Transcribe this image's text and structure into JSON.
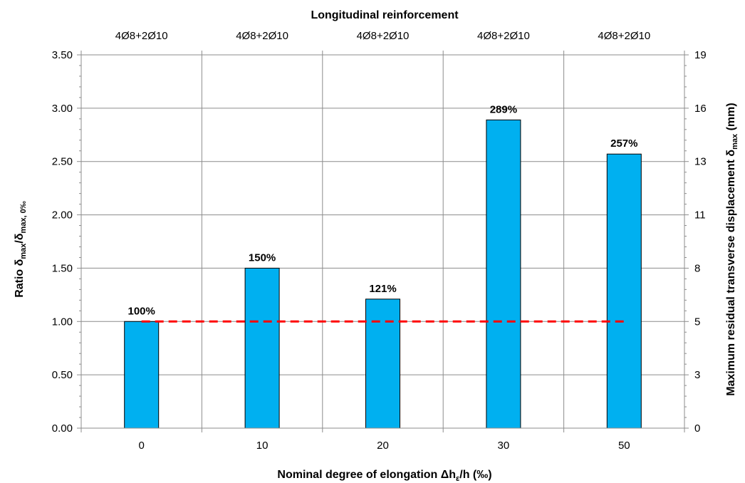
{
  "chart_data": {
    "type": "bar",
    "title": "",
    "top_axis": {
      "title": "Longitudinal reinforcement",
      "labels": [
        "4Ø8+2Ø10",
        "4Ø8+2Ø10",
        "4Ø8+2Ø10",
        "4Ø8+2Ø10",
        "4Ø8+2Ø10"
      ]
    },
    "xlabel": {
      "prefix": "Nominal degree of elongation Δh",
      "subscript": "ε",
      "suffix": "/h (‰)"
    },
    "ylabel": {
      "prefix": "Ratio δ",
      "sub1": "max",
      "mid": "/δ",
      "sub2": "max, 0‰"
    },
    "y2label": {
      "prefix": "Maximum residual transverse displacement δ",
      "sub": "max",
      "suffix": " (mm)"
    },
    "categories": [
      "0",
      "10",
      "20",
      "30",
      "50"
    ],
    "series": [
      {
        "values": [
          1.0,
          1.5,
          1.21,
          2.89,
          2.57
        ],
        "data_labels": [
          "100%",
          "150%",
          "121%",
          "289%",
          "257%"
        ],
        "color": "#00b0f0"
      }
    ],
    "reference_line": {
      "value": 1.0,
      "color": "#ff0000",
      "style": "dashed"
    },
    "ylim": [
      0,
      3.5
    ],
    "yticks": [
      "0.00",
      "0.50",
      "1.00",
      "1.50",
      "2.00",
      "2.50",
      "3.00",
      "3.50"
    ],
    "y2ticks": [
      "0",
      "3",
      "5",
      "8",
      "11",
      "13",
      "16",
      "19"
    ],
    "grid": true
  }
}
